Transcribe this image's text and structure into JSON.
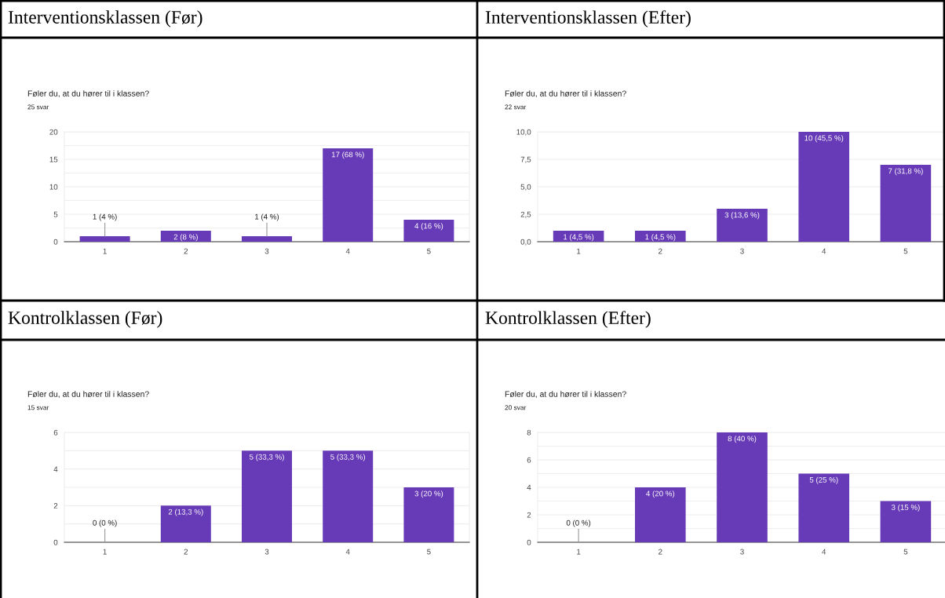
{
  "chart_data": [
    {
      "type": "bar",
      "title": "Interventionsklassen (Før)",
      "subtitle": "Føler du, at du hører til i klassen?",
      "annotations": [
        "25 svar"
      ],
      "categories": [
        "1",
        "2",
        "3",
        "4",
        "5"
      ],
      "values": [
        1,
        2,
        1,
        17,
        4
      ],
      "value_labels": [
        "1 (4 %)",
        "2 (8 %)",
        "1 (4 %)",
        "17 (68 %)",
        "4 (16 %)"
      ],
      "color": "#673ab7",
      "ylim": [
        0,
        20
      ],
      "yticks": [
        0,
        {
          "value": 2.5,
          "label": null
        },
        5,
        {
          "value": 7.5,
          "label": null
        },
        10,
        {
          "value": 12.5,
          "label": null
        },
        15,
        {
          "value": 17.5,
          "label": null
        },
        20
      ],
      "grid": "y"
    },
    {
      "type": "bar",
      "title": "Interventionsklassen (Efter)",
      "subtitle": "Føler du, at du hører til i klassen?",
      "annotations": [
        "22 svar"
      ],
      "categories": [
        "1",
        "2",
        "3",
        "4",
        "5"
      ],
      "values": [
        1,
        1,
        3,
        10,
        7
      ],
      "value_labels": [
        "1 (4,5 %)",
        "1 (4,5 %)",
        "3 (13,6 %)",
        "10 (45,5 %)",
        "7 (31,8 %)"
      ],
      "color": "#673ab7",
      "ylim": [
        0,
        10
      ],
      "yticks": [
        {
          "value": 0,
          "label": "0,0"
        },
        {
          "value": 2.5,
          "label": "2,5"
        },
        {
          "value": 5,
          "label": "5,0"
        },
        {
          "value": 7.5,
          "label": "7,5"
        },
        {
          "value": 10,
          "label": "10,0"
        }
      ],
      "grid": "y"
    },
    {
      "type": "bar",
      "title": "Kontrolklassen (Før)",
      "subtitle": "Føler du, at du hører til i klassen?",
      "annotations": [
        "15 svar"
      ],
      "categories": [
        "1",
        "2",
        "3",
        "4",
        "5"
      ],
      "values": [
        0,
        2,
        5,
        5,
        3
      ],
      "value_labels": [
        "0 (0 %)",
        "2 (13,3 %)",
        "5 (33,3 %)",
        "5 (33,3 %)",
        "3 (20 %)"
      ],
      "color": "#673ab7",
      "ylim": [
        0,
        6
      ],
      "yticks": [
        0,
        {
          "value": 1,
          "label": null
        },
        2,
        {
          "value": 3,
          "label": null
        },
        4,
        {
          "value": 5,
          "label": null
        },
        6
      ],
      "grid": "y"
    },
    {
      "type": "bar",
      "title": "Kontrolklassen (Efter)",
      "subtitle": "Føler du, at du hører til i klassen?",
      "annotations": [
        "20 svar"
      ],
      "categories": [
        "1",
        "2",
        "3",
        "4",
        "5"
      ],
      "values": [
        0,
        4,
        8,
        5,
        3
      ],
      "value_labels": [
        "0 (0 %)",
        "4 (20 %)",
        "8 (40 %)",
        "5 (25 %)",
        "3 (15 %)"
      ],
      "color": "#673ab7",
      "ylim": [
        0,
        8
      ],
      "yticks": [
        0,
        {
          "value": 1,
          "label": null
        },
        2,
        {
          "value": 3,
          "label": null
        },
        4,
        {
          "value": 5,
          "label": null
        },
        6,
        {
          "value": 7,
          "label": null
        },
        8
      ],
      "grid": "y"
    }
  ]
}
